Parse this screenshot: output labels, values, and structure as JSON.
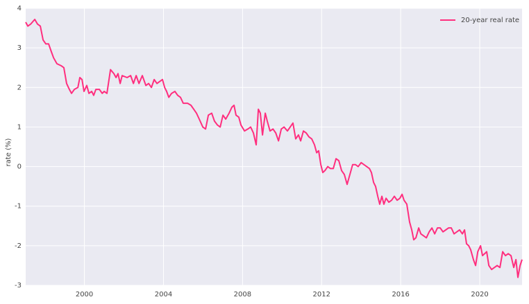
{
  "chart_data": {
    "type": "line",
    "ylabel": "rate (%)",
    "x": [
      1997.03,
      1997.14,
      1997.28,
      1997.49,
      1997.63,
      1997.77,
      1997.91,
      1998.05,
      1998.19,
      1998.33,
      1998.44,
      1998.61,
      1998.82,
      1998.96,
      1999.1,
      1999.24,
      1999.35,
      1999.49,
      1999.67,
      1999.77,
      1999.88,
      1999.98,
      2000.12,
      2000.23,
      2000.37,
      2000.47,
      2000.58,
      2000.76,
      2000.9,
      2001.0,
      2001.14,
      2001.32,
      2001.49,
      2001.6,
      2001.7,
      2001.81,
      2001.91,
      2002.16,
      2002.34,
      2002.48,
      2002.62,
      2002.76,
      2002.93,
      2003.11,
      2003.25,
      2003.39,
      2003.53,
      2003.67,
      2003.81,
      2003.95,
      2004.06,
      2004.16,
      2004.27,
      2004.41,
      2004.58,
      2004.72,
      2004.86,
      2005.0,
      2005.22,
      2005.39,
      2005.53,
      2005.67,
      2005.81,
      2005.99,
      2006.13,
      2006.27,
      2006.44,
      2006.58,
      2006.73,
      2006.87,
      2007.01,
      2007.15,
      2007.32,
      2007.46,
      2007.57,
      2007.67,
      2007.81,
      2007.92,
      2008.1,
      2008.27,
      2008.41,
      2008.55,
      2008.69,
      2008.8,
      2008.9,
      2009.01,
      2009.15,
      2009.25,
      2009.39,
      2009.54,
      2009.68,
      2009.82,
      2009.96,
      2010.1,
      2010.27,
      2010.41,
      2010.55,
      2010.69,
      2010.83,
      2010.94,
      2011.08,
      2011.22,
      2011.36,
      2011.5,
      2011.64,
      2011.75,
      2011.85,
      2011.96,
      2012.06,
      2012.17,
      2012.31,
      2012.45,
      2012.59,
      2012.73,
      2012.87,
      2013.01,
      2013.15,
      2013.29,
      2013.43,
      2013.57,
      2013.71,
      2013.85,
      2014.0,
      2014.14,
      2014.28,
      2014.42,
      2014.52,
      2014.63,
      2014.73,
      2014.84,
      2014.94,
      2015.05,
      2015.15,
      2015.26,
      2015.4,
      2015.54,
      2015.68,
      2015.82,
      2015.96,
      2016.07,
      2016.17,
      2016.31,
      2016.45,
      2016.56,
      2016.66,
      2016.77,
      2016.91,
      2017.02,
      2017.16,
      2017.3,
      2017.44,
      2017.58,
      2017.72,
      2017.86,
      2018.0,
      2018.14,
      2018.28,
      2018.42,
      2018.56,
      2018.7,
      2018.84,
      2018.98,
      2019.12,
      2019.23,
      2019.33,
      2019.44,
      2019.54,
      2019.68,
      2019.79,
      2019.9,
      2020.04,
      2020.14,
      2020.25,
      2020.35,
      2020.46,
      2020.6,
      2020.74,
      2020.88,
      2021.02,
      2021.16,
      2021.3,
      2021.44,
      2021.58,
      2021.72,
      2021.83,
      2021.93,
      2022.04,
      2022.14
    ],
    "series": [
      {
        "name": "20-year real rate",
        "color": "#ff2e7e",
        "values": [
          3.65,
          3.55,
          3.6,
          3.72,
          3.6,
          3.55,
          3.2,
          3.1,
          3.1,
          2.9,
          2.75,
          2.6,
          2.55,
          2.5,
          2.1,
          1.95,
          1.85,
          1.95,
          2.0,
          2.25,
          2.2,
          1.9,
          2.05,
          1.85,
          1.9,
          1.8,
          1.95,
          1.95,
          1.85,
          1.9,
          1.85,
          2.45,
          2.35,
          2.25,
          2.35,
          2.1,
          2.3,
          2.25,
          2.3,
          2.1,
          2.3,
          2.1,
          2.3,
          2.05,
          2.1,
          2.0,
          2.2,
          2.1,
          2.15,
          2.2,
          2.0,
          1.9,
          1.75,
          1.85,
          1.9,
          1.8,
          1.75,
          1.6,
          1.6,
          1.55,
          1.45,
          1.35,
          1.2,
          1.0,
          0.95,
          1.3,
          1.35,
          1.15,
          1.05,
          1.0,
          1.3,
          1.2,
          1.35,
          1.5,
          1.55,
          1.3,
          1.25,
          1.05,
          0.9,
          0.95,
          1.0,
          0.85,
          0.55,
          1.45,
          1.35,
          0.8,
          1.35,
          1.15,
          0.9,
          0.95,
          0.85,
          0.65,
          0.95,
          1.0,
          0.9,
          1.0,
          1.1,
          0.7,
          0.8,
          0.65,
          0.9,
          0.85,
          0.75,
          0.7,
          0.55,
          0.35,
          0.4,
          0.05,
          -0.15,
          -0.1,
          0.0,
          -0.05,
          -0.05,
          0.2,
          0.15,
          -0.1,
          -0.2,
          -0.45,
          -0.2,
          0.05,
          0.05,
          0.0,
          0.1,
          0.05,
          0.0,
          -0.05,
          -0.15,
          -0.4,
          -0.5,
          -0.75,
          -0.95,
          -0.75,
          -0.95,
          -0.8,
          -0.9,
          -0.85,
          -0.75,
          -0.85,
          -0.8,
          -0.7,
          -0.85,
          -0.95,
          -1.4,
          -1.6,
          -1.85,
          -1.8,
          -1.55,
          -1.7,
          -1.75,
          -1.8,
          -1.65,
          -1.55,
          -1.7,
          -1.55,
          -1.55,
          -1.65,
          -1.6,
          -1.55,
          -1.55,
          -1.7,
          -1.65,
          -1.6,
          -1.7,
          -1.6,
          -1.95,
          -2.0,
          -2.1,
          -2.35,
          -2.5,
          -2.15,
          -2.0,
          -2.25,
          -2.2,
          -2.15,
          -2.5,
          -2.6,
          -2.55,
          -2.5,
          -2.55,
          -2.15,
          -2.25,
          -2.2,
          -2.25,
          -2.55,
          -2.35,
          -2.8,
          -2.5,
          -2.35
        ]
      }
    ],
    "xlim": [
      1997.03,
      2022.14
    ],
    "xticks": [
      2000,
      2004,
      2008,
      2012,
      2016,
      2020
    ],
    "ylim": [
      -3,
      4
    ],
    "yticks": [
      -3,
      -2,
      -1,
      0,
      1,
      2,
      3,
      4
    ],
    "grid": true,
    "legend": "upper right"
  }
}
